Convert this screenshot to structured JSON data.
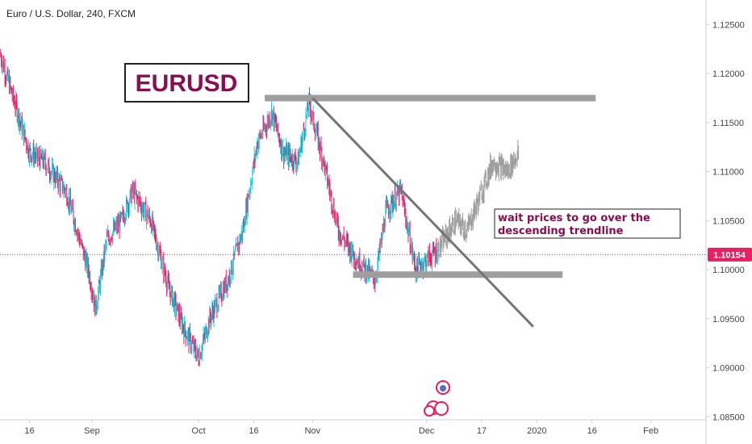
{
  "header": {
    "symbol_title": "Euro / U.S. Dollar, 240, FXCM"
  },
  "annotations": {
    "eurusd_label": "EURUSD",
    "note_line1": "wait prices to go over the",
    "note_line2": "descending trendline",
    "current_price_badge": "1.10154"
  },
  "colors": {
    "up_candle": "#26c6da",
    "down_candle": "#e91e63",
    "zone": "#9e9e9e",
    "trendline": "#757575",
    "eurusd_text": "#880e4f",
    "note_text": "#880e4f",
    "price_badge": "#e91e63",
    "projection": "#9e9e9e"
  },
  "chart_data": {
    "type": "line",
    "title": "Euro / U.S. Dollar, 240, FXCM",
    "xlabel": "",
    "ylabel": "",
    "ylim": [
      1.0847,
      1.1275
    ],
    "y_ticks": [
      "1.12500",
      "1.12000",
      "1.11500",
      "1.11000",
      "1.10500",
      "1.10000",
      "1.09500",
      "1.09000",
      "1.08500"
    ],
    "y_tick_values": [
      1.125,
      1.12,
      1.115,
      1.11,
      1.105,
      1.1,
      1.095,
      1.09,
      1.085
    ],
    "x_ticks": [
      "16",
      "Sep",
      "Oct",
      "16",
      "Nov",
      "Dec",
      "17",
      "2020",
      "16",
      "Feb"
    ],
    "x_tick_dates": [
      "2019-08-16",
      "2019-09-02",
      "2019-10-01",
      "2019-10-16",
      "2019-11-01",
      "2019-12-02",
      "2019-12-17",
      "2020-01-01",
      "2020-01-16",
      "2020-02-01"
    ],
    "x_range": [
      "2019-08-08",
      "2020-02-16"
    ],
    "series": [
      {
        "values_x": [
          "2019-08-08",
          "2019-08-12",
          "2019-08-16",
          "2019-08-20",
          "2019-08-26",
          "2019-09-01",
          "2019-09-03",
          "2019-09-06",
          "2019-09-10",
          "2019-09-13",
          "2019-09-18",
          "2019-09-23",
          "2019-09-27",
          "2019-10-01",
          "2019-10-04",
          "2019-10-09",
          "2019-10-13",
          "2019-10-17",
          "2019-10-21",
          "2019-10-24",
          "2019-10-28",
          "2019-10-31",
          "2019-11-04",
          "2019-11-08",
          "2019-11-13",
          "2019-11-18",
          "2019-11-21",
          "2019-11-25",
          "2019-11-29",
          "2019-12-02",
          "2019-12-05",
          "2019-12-10",
          "2019-12-13",
          "2019-12-17",
          "2019-12-20",
          "2019-12-24",
          "2019-12-27"
        ],
        "values": [
          1.122,
          1.117,
          1.112,
          1.111,
          1.108,
          1.1,
          1.096,
          1.103,
          1.105,
          1.108,
          1.105,
          1.098,
          1.094,
          1.091,
          1.095,
          1.099,
          1.104,
          1.113,
          1.116,
          1.112,
          1.111,
          1.117,
          1.111,
          1.104,
          1.101,
          1.099,
          1.106,
          1.108,
          1.1,
          1.101,
          1.102,
          1.105,
          1.104,
          1.108,
          1.111,
          1.11,
          1.112
        ]
      }
    ],
    "zones": [
      {
        "from": "2019-10-19",
        "to": "2020-01-17",
        "price": 1.1175
      },
      {
        "from": "2019-11-12",
        "to": "2020-01-08",
        "price": 1.0995
      }
    ],
    "trendline": {
      "from_date": "2019-11-01",
      "from_price": 1.1175,
      "to_date": "2019-12-31",
      "to_price": 1.0942
    },
    "current_price": 1.10154,
    "grid": false,
    "legend": "none"
  }
}
